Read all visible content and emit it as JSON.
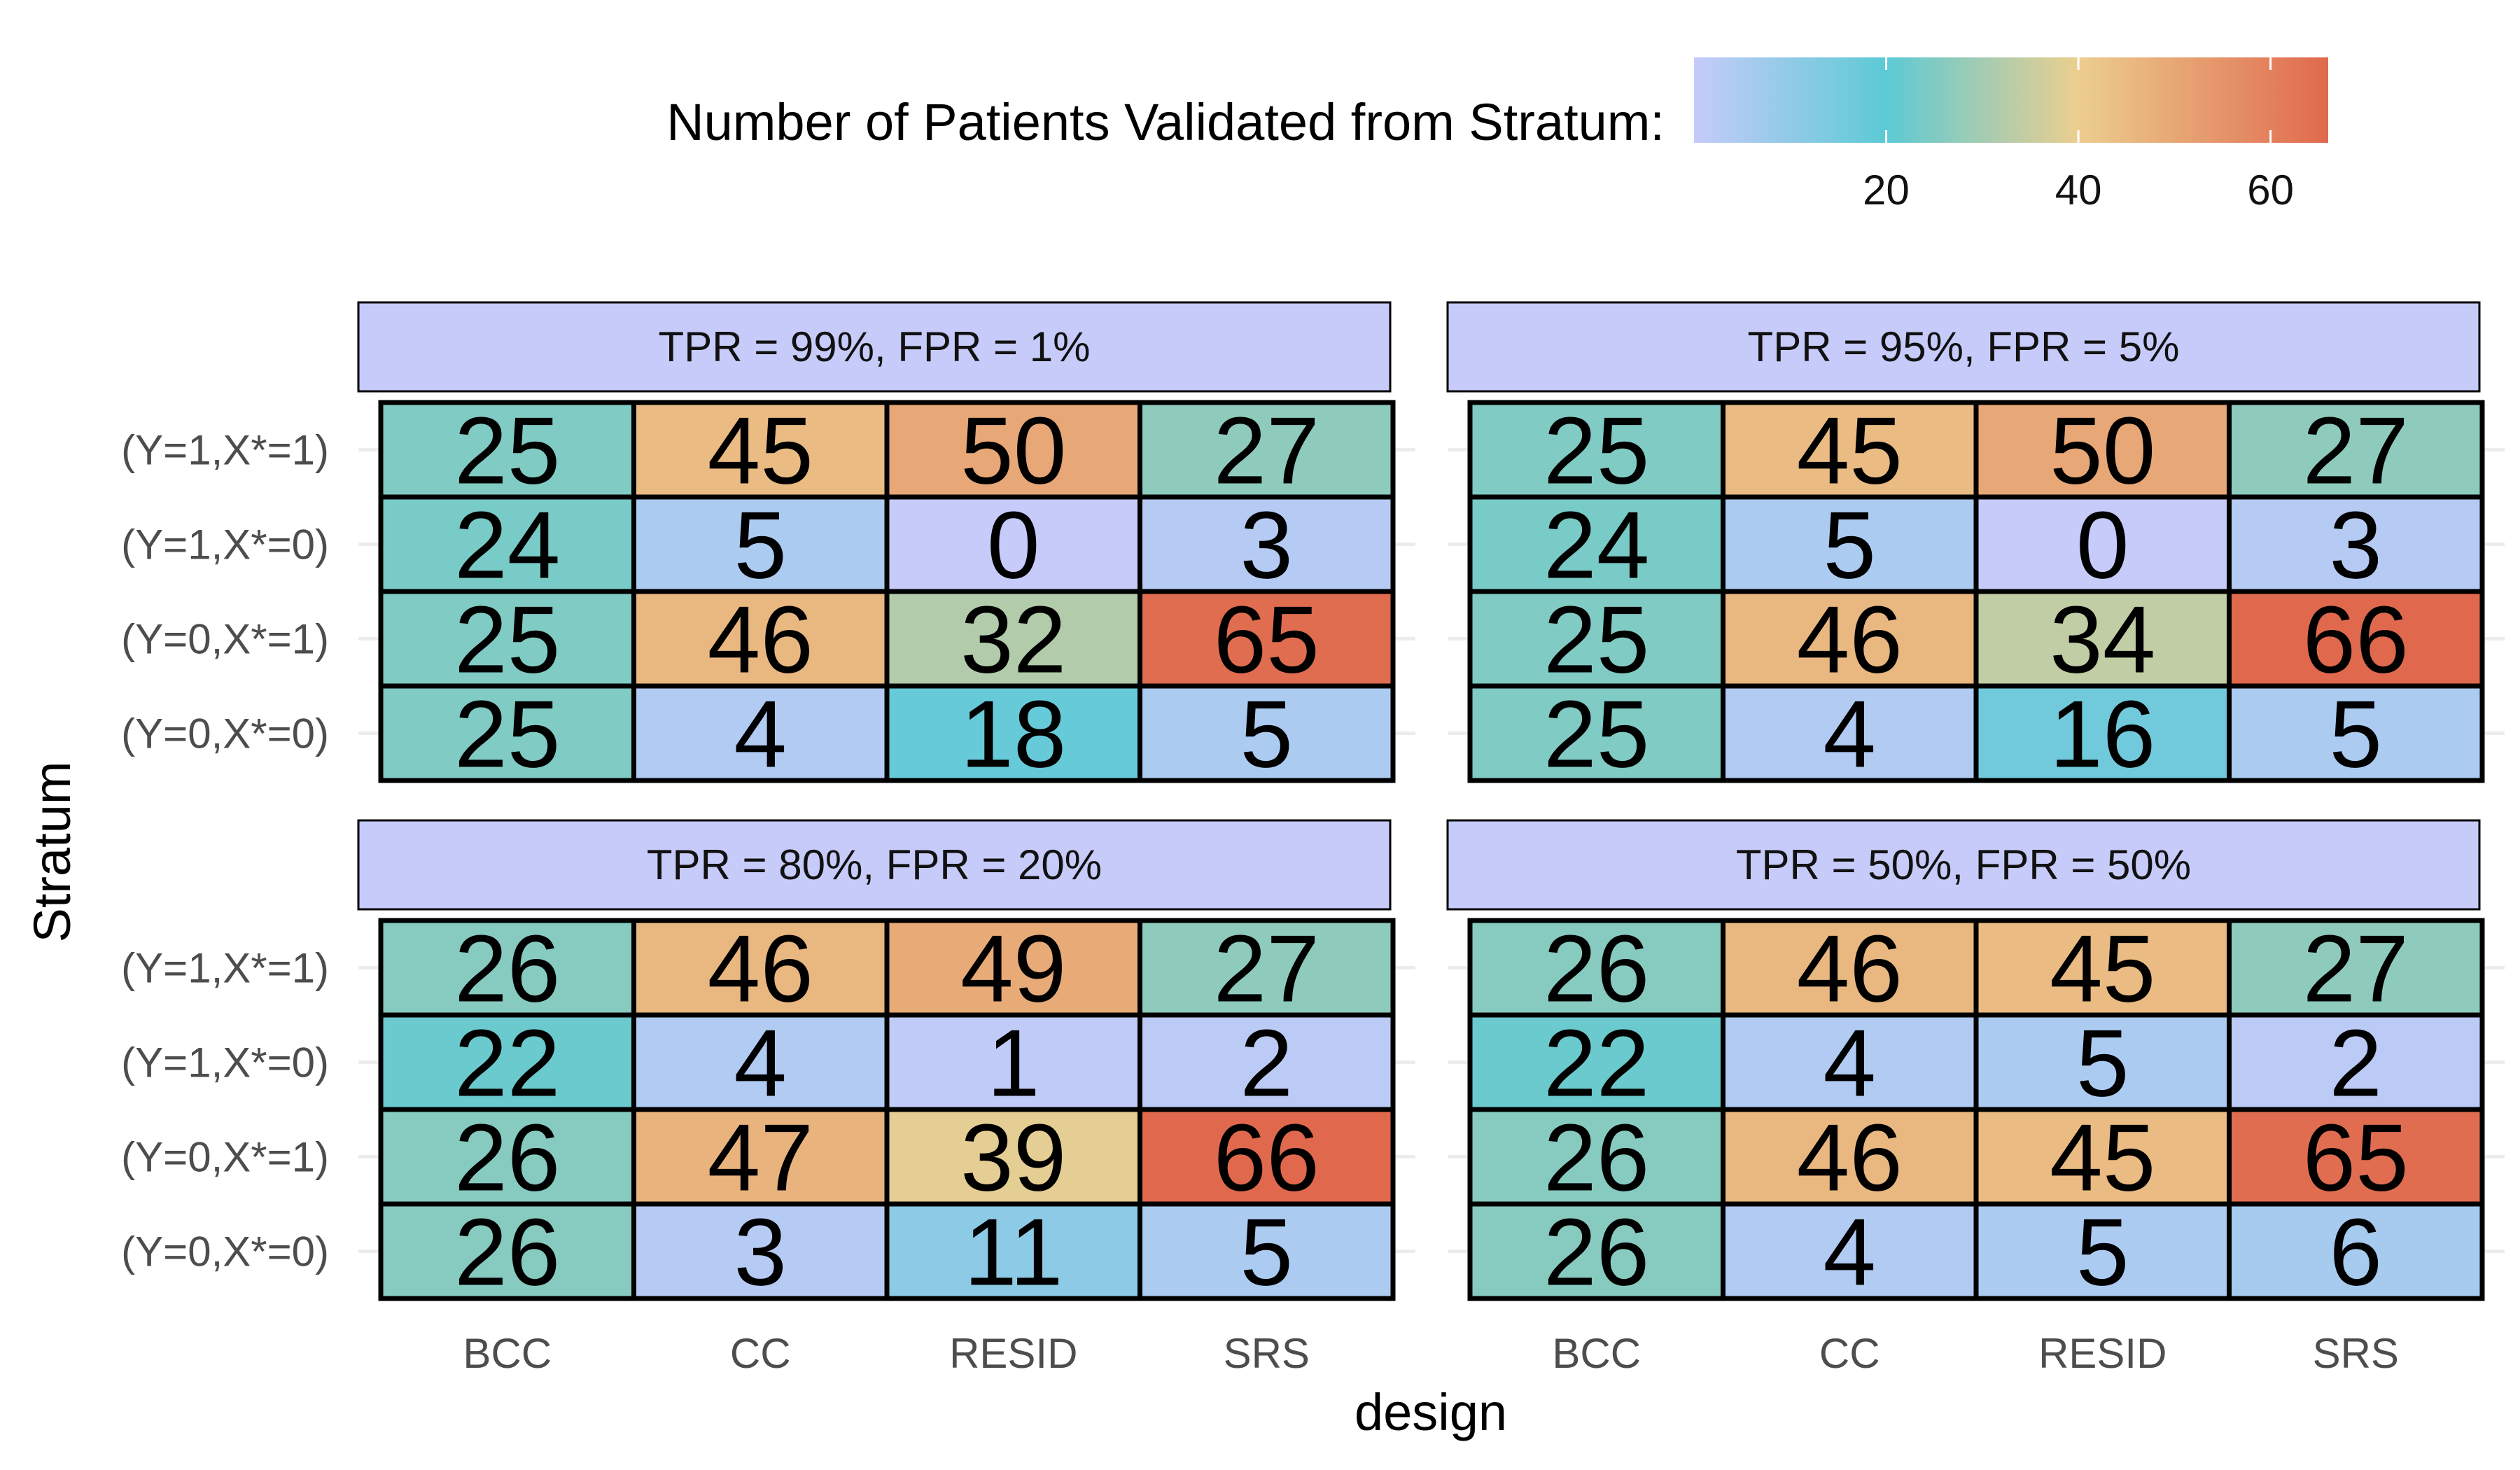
{
  "chart_data": {
    "type": "heatmap",
    "title": "",
    "xlabel": "design",
    "ylabel": "Stratum",
    "x_categories": [
      "BCC",
      "CC",
      "RESID",
      "SRS"
    ],
    "y_categories": [
      "(Y=1,X*=1)",
      "(Y=1,X*=0)",
      "(Y=0,X*=1)",
      "(Y=0,X*=0)"
    ],
    "legend": {
      "title": "Number of Patients Validated from Stratum:",
      "position": "top",
      "ticks": [
        20,
        40,
        60
      ],
      "range": [
        0,
        66
      ],
      "colors": [
        "#c6cbfa",
        "#5ccad5",
        "#ecce8f",
        "#e0694d"
      ]
    },
    "facets": [
      {
        "label": "TPR = 99%, FPR = 1%",
        "values": [
          [
            25,
            45,
            50,
            27
          ],
          [
            24,
            5,
            0,
            3
          ],
          [
            25,
            46,
            32,
            65
          ],
          [
            25,
            4,
            18,
            5
          ]
        ]
      },
      {
        "label": "TPR = 95%, FPR = 5%",
        "values": [
          [
            25,
            45,
            50,
            27
          ],
          [
            24,
            5,
            0,
            3
          ],
          [
            25,
            46,
            34,
            66
          ],
          [
            25,
            4,
            16,
            5
          ]
        ]
      },
      {
        "label": "TPR = 80%, FPR = 20%",
        "values": [
          [
            26,
            46,
            49,
            27
          ],
          [
            22,
            4,
            1,
            2
          ],
          [
            26,
            47,
            39,
            66
          ],
          [
            26,
            3,
            11,
            5
          ]
        ]
      },
      {
        "label": "TPR = 50%, FPR = 50%",
        "values": [
          [
            26,
            46,
            45,
            27
          ],
          [
            22,
            4,
            5,
            2
          ],
          [
            26,
            46,
            45,
            65
          ],
          [
            26,
            4,
            5,
            6
          ]
        ]
      }
    ]
  }
}
